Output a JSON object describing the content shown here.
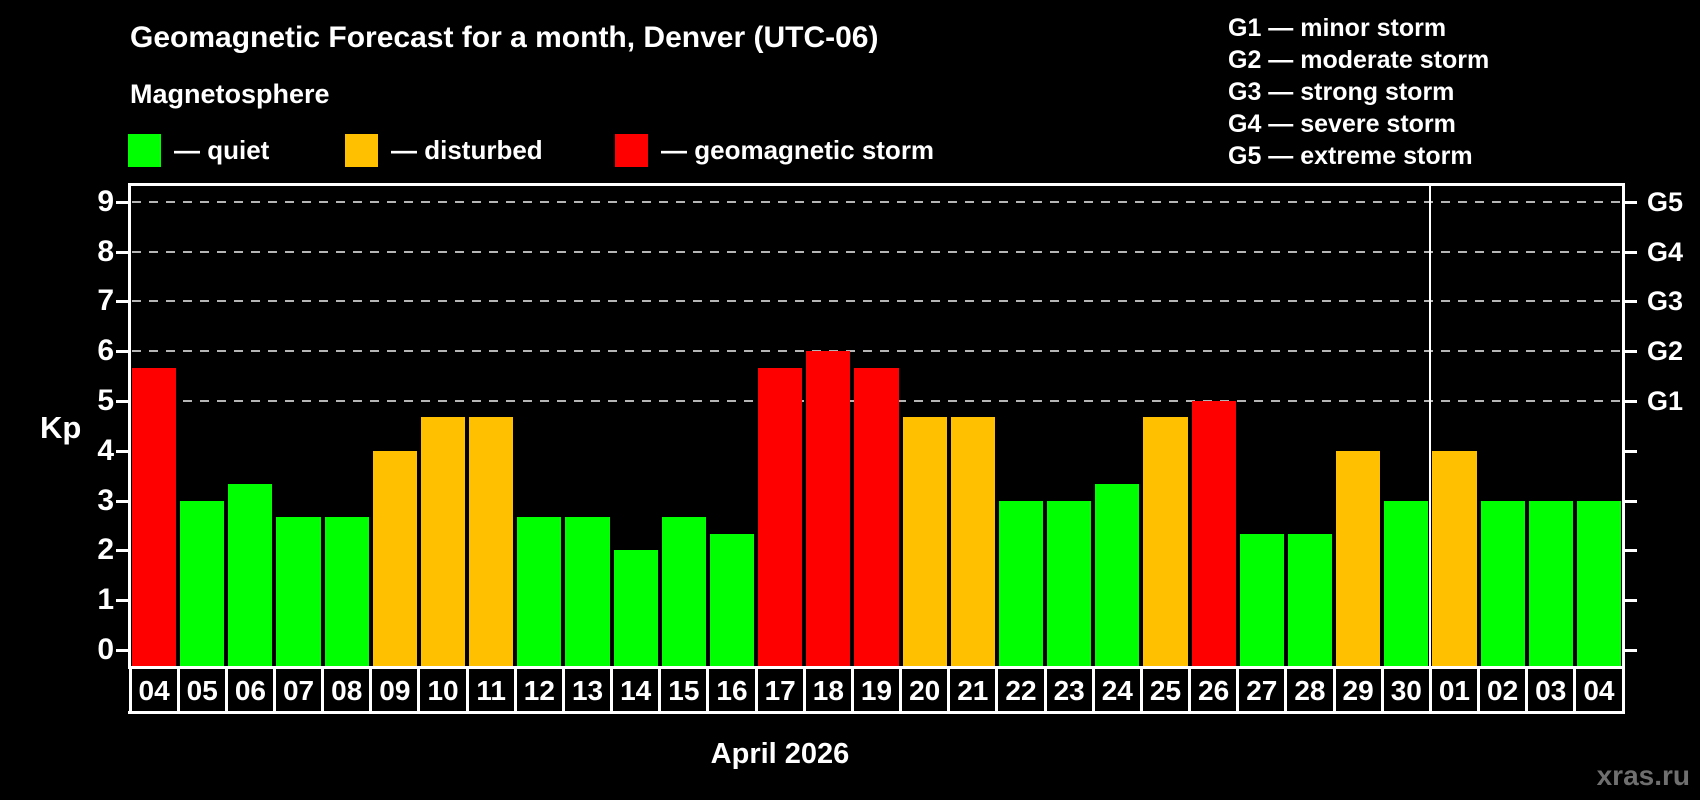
{
  "header": {
    "title": "Geomagnetic Forecast for a month, Denver (UTC-06)",
    "subtitle": "Magnetosphere",
    "legend": [
      {
        "name": "quiet",
        "label": "— quiet",
        "color": "#00ff00"
      },
      {
        "name": "disturbed",
        "label": "— disturbed",
        "color": "#ffc000"
      },
      {
        "name": "storm",
        "label": "— geomagnetic storm",
        "color": "#ff0000"
      }
    ],
    "storm_scale": [
      "G1 — minor storm",
      "G2 — moderate storm",
      "G3 — strong storm",
      "G4 — severe storm",
      "G5 — extreme storm"
    ]
  },
  "chart_data": {
    "type": "bar",
    "title": "Geomagnetic Forecast for a month, Denver (UTC-06)",
    "xlabel": "April 2026",
    "ylabel": "Kp",
    "ylim": [
      0,
      9
    ],
    "y_ticks": [
      0,
      1,
      2,
      3,
      4,
      5,
      6,
      7,
      8,
      9
    ],
    "grid": "dashed-horizontal-at-storm-levels",
    "grid_levels": [
      5,
      6,
      7,
      8,
      9
    ],
    "legend_position": "top-left",
    "right_axis": [
      {
        "value": 5,
        "label": "G1"
      },
      {
        "value": 6,
        "label": "G2"
      },
      {
        "value": 7,
        "label": "G3"
      },
      {
        "value": 8,
        "label": "G4"
      },
      {
        "value": 9,
        "label": "G5"
      }
    ],
    "categories": [
      "04",
      "05",
      "06",
      "07",
      "08",
      "09",
      "10",
      "11",
      "12",
      "13",
      "14",
      "15",
      "16",
      "17",
      "18",
      "19",
      "20",
      "21",
      "22",
      "23",
      "24",
      "25",
      "26",
      "27",
      "28",
      "29",
      "30",
      "01",
      "02",
      "03",
      "04"
    ],
    "values": [
      5.67,
      3,
      3.33,
      2.67,
      2.67,
      4,
      4.67,
      4.67,
      2.67,
      2.67,
      2,
      2.67,
      2.33,
      5.67,
      6,
      5.67,
      4.67,
      4.67,
      3,
      3,
      3.33,
      4.67,
      5,
      2.33,
      2.33,
      4,
      3,
      4,
      3,
      3,
      3
    ],
    "statuses": [
      "storm",
      "quiet",
      "quiet",
      "quiet",
      "quiet",
      "disturbed",
      "disturbed",
      "disturbed",
      "quiet",
      "quiet",
      "quiet",
      "quiet",
      "quiet",
      "storm",
      "storm",
      "storm",
      "disturbed",
      "disturbed",
      "quiet",
      "quiet",
      "quiet",
      "disturbed",
      "storm",
      "quiet",
      "quiet",
      "disturbed",
      "quiet",
      "disturbed",
      "quiet",
      "quiet",
      "quiet"
    ],
    "status_colors": {
      "quiet": "#00ff00",
      "disturbed": "#ffc000",
      "storm": "#ff0000"
    },
    "month_divider_after_index": 26
  },
  "footer": {
    "watermark": "xras.ru"
  }
}
